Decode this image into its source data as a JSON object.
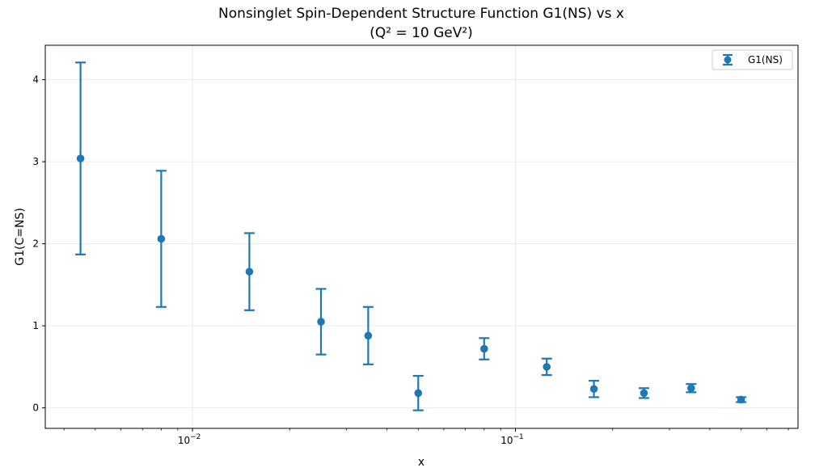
{
  "chart_data": {
    "type": "scatter",
    "title_line1": "Nonsinglet Spin-Dependent Structure Function G1(NS) vs x",
    "title_line2": "(Q² = 10 GeV²)",
    "xlabel": "x",
    "ylabel": "G1(C=NS)",
    "x_scale": "log",
    "xlim": [
      0.0035,
      0.75
    ],
    "ylim": [
      -0.25,
      4.42
    ],
    "yticks": [
      0,
      1,
      2,
      3,
      4
    ],
    "xtick_major": [
      {
        "value": 0.01,
        "base": "10",
        "exp": "−2"
      },
      {
        "value": 0.1,
        "base": "10",
        "exp": "−1"
      }
    ],
    "grid": true,
    "legend_position": "top-right",
    "series": [
      {
        "name": "G1(NS)",
        "color": "#1f77b4",
        "points": [
          {
            "x": 0.0045,
            "y": 3.04,
            "err": 1.17
          },
          {
            "x": 0.008,
            "y": 2.06,
            "err": 0.83
          },
          {
            "x": 0.015,
            "y": 1.66,
            "err": 0.47
          },
          {
            "x": 0.025,
            "y": 1.05,
            "err": 0.4
          },
          {
            "x": 0.035,
            "y": 0.88,
            "err": 0.35
          },
          {
            "x": 0.05,
            "y": 0.18,
            "err": 0.21
          },
          {
            "x": 0.08,
            "y": 0.72,
            "err": 0.13
          },
          {
            "x": 0.125,
            "y": 0.5,
            "err": 0.1
          },
          {
            "x": 0.175,
            "y": 0.23,
            "err": 0.1
          },
          {
            "x": 0.25,
            "y": 0.18,
            "err": 0.06
          },
          {
            "x": 0.35,
            "y": 0.24,
            "err": 0.05
          },
          {
            "x": 0.5,
            "y": 0.1,
            "err": 0.03
          }
        ]
      }
    ]
  }
}
